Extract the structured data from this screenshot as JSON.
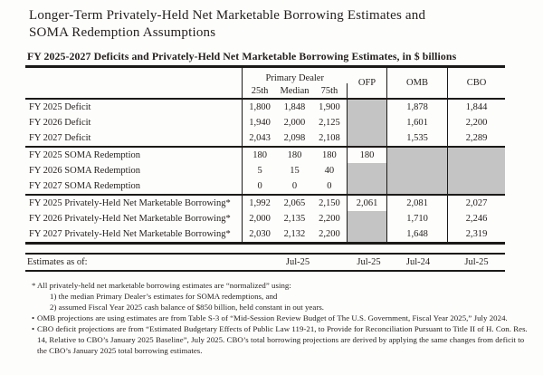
{
  "title": {
    "line1": "Longer-Term Privately-Held Net Marketable Borrowing Estimates and",
    "line2": "SOMA Redemption Assumptions"
  },
  "subtitle": "FY 2025-2027 Deficits and Privately-Held Net Marketable Borrowing Estimates, in $ billions",
  "table": {
    "group_header": "Primary Dealer",
    "col_headers": {
      "p25": "25th",
      "median": "Median",
      "p75": "75th",
      "ofp": "OFP",
      "omb": "OMB",
      "cbo": "CBO"
    },
    "rows": [
      {
        "label": "FY 2025 Deficit",
        "p25": "1,800",
        "median": "1,848",
        "p75": "1,900",
        "ofp": "",
        "omb": "1,878",
        "cbo": "1,844"
      },
      {
        "label": "FY 2026 Deficit",
        "p25": "1,940",
        "median": "2,000",
        "p75": "2,125",
        "ofp": "",
        "omb": "1,601",
        "cbo": "2,200"
      },
      {
        "label": "FY 2027 Deficit",
        "p25": "2,043",
        "median": "2,098",
        "p75": "2,108",
        "ofp": "",
        "omb": "1,535",
        "cbo": "2,289"
      },
      {
        "label": "FY 2025 SOMA Redemption",
        "p25": "180",
        "median": "180",
        "p75": "180",
        "ofp": "180",
        "omb": "",
        "cbo": ""
      },
      {
        "label": "FY 2026 SOMA Redemption",
        "p25": "5",
        "median": "15",
        "p75": "40",
        "ofp": "",
        "omb": "",
        "cbo": ""
      },
      {
        "label": "FY 2027 SOMA Redemption",
        "p25": "0",
        "median": "0",
        "p75": "0",
        "ofp": "",
        "omb": "",
        "cbo": ""
      },
      {
        "label": "FY 2025 Privately-Held Net Marketable Borrowing*",
        "p25": "1,992",
        "median": "2,065",
        "p75": "2,150",
        "ofp": "2,061",
        "omb": "2,081",
        "cbo": "2,027"
      },
      {
        "label": "FY 2026 Privately-Held Net Marketable Borrowing*",
        "p25": "2,000",
        "median": "2,135",
        "p75": "2,200",
        "ofp": "",
        "omb": "1,710",
        "cbo": "2,246"
      },
      {
        "label": "FY 2027 Privately-Held Net Marketable Borrowing*",
        "p25": "2,030",
        "median": "2,132",
        "p75": "2,200",
        "ofp": "",
        "omb": "1,648",
        "cbo": "2,319"
      }
    ]
  },
  "estimates_row": {
    "label": "Estimates as of:",
    "primary_dealer": "Jul-25",
    "ofp": "Jul-25",
    "omb": "Jul-24",
    "cbo": "Jul-25"
  },
  "footnotes": {
    "fn1_marker": "*",
    "fn1": "All privately-held net marketable borrowing estimates are “normalized” using:",
    "fn1_sub1": "1) the median Primary Dealer’s estimates for SOMA redemptions, and",
    "fn1_sub2": "2) assumed Fiscal Year 2025 cash balance of $850 billion, held constant in out years.",
    "fn2_marker": "•",
    "fn2": "OMB projections are using estimates are from Table S-3 of “Mid-Session Review Budget of The U.S. Government, Fiscal Year 2025,” July 2024.",
    "fn3_marker": "•",
    "fn3": "CBO deficit projections are from “Estimated Budgetary Effects of Public Law 119-21, to Provide for Reconciliation Pursuant to Title II of H. Con. Res. 14, Relative to CBO’s January 2025 Baseline”, July 2025. CBO’s total borrowing projections are derived by applying the same changes from deficit to the CBO’s January 2025 total borrowing estimates."
  },
  "colors": {
    "cell_gray": "#c4c4c4",
    "rule_black": "#1c1a18"
  }
}
